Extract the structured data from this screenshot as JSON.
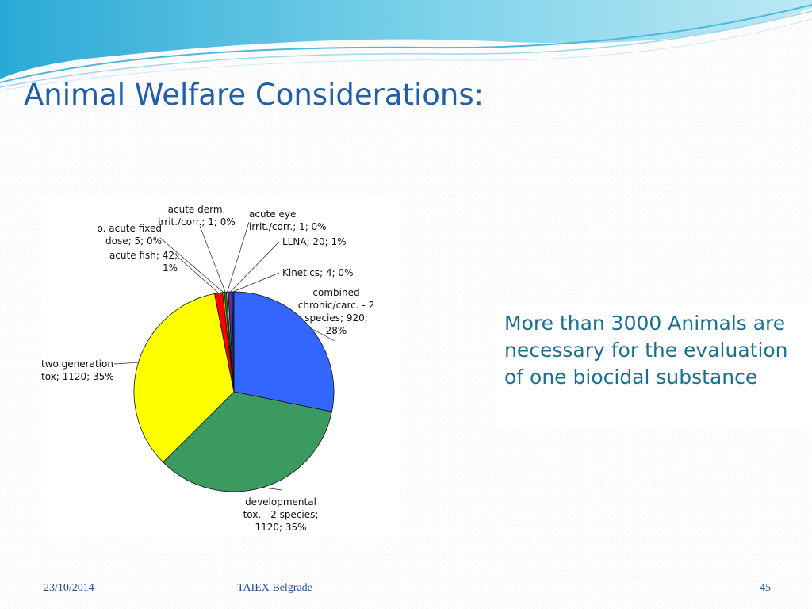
{
  "slide": {
    "title": "Animal Welfare Considerations:",
    "callout": "More than 3000 Animals are necessary for the evaluation of one biocidal substance"
  },
  "footer": {
    "date": "23/10/2014",
    "organization": "TAIEX Belgrade",
    "page_number": "45"
  },
  "theme": {
    "title_color": "#1f5fa8",
    "callout_color": "#1c6f8f",
    "footer_color": "#1f4f8f",
    "wave_colors": [
      "#2aa9d6",
      "#7fd3ea",
      "#bde9f4"
    ]
  },
  "chart_data": {
    "type": "pie",
    "slices": [
      {
        "lines": [
          "combined",
          "chronic/carc. - 2",
          "species; 920;",
          "28%"
        ],
        "value": 920,
        "color": "#3366ff"
      },
      {
        "lines": [
          "developmental",
          "tox. - 2 species;",
          "1120; 35%"
        ],
        "value": 1120,
        "color": "#3a9a60"
      },
      {
        "lines": [
          "two generation",
          "tox; 1120; 35%"
        ],
        "value": 1120,
        "color": "#ffff00"
      },
      {
        "lines": [
          "acute fish; 42;",
          "1%"
        ],
        "value": 42,
        "color": "#ff0000"
      },
      {
        "lines": [
          "o. acute fixed",
          "dose; 5; 0%"
        ],
        "value": 5,
        "color": "#ff8c00"
      },
      {
        "lines": [
          "acute derm.",
          "irrit./corr.; 1; 0%"
        ],
        "value": 1,
        "color": "#00aa00"
      },
      {
        "lines": [
          "acute eye",
          "irrit./corr.; 1; 0%"
        ],
        "value": 1,
        "color": "#66ccff"
      },
      {
        "lines": [
          "LLNA; 20; 1%"
        ],
        "value": 20,
        "color": "#7a1e8c"
      },
      {
        "lines": [
          "Kinetics; 4; 0%"
        ],
        "value": 4,
        "color": "#003399"
      }
    ]
  }
}
